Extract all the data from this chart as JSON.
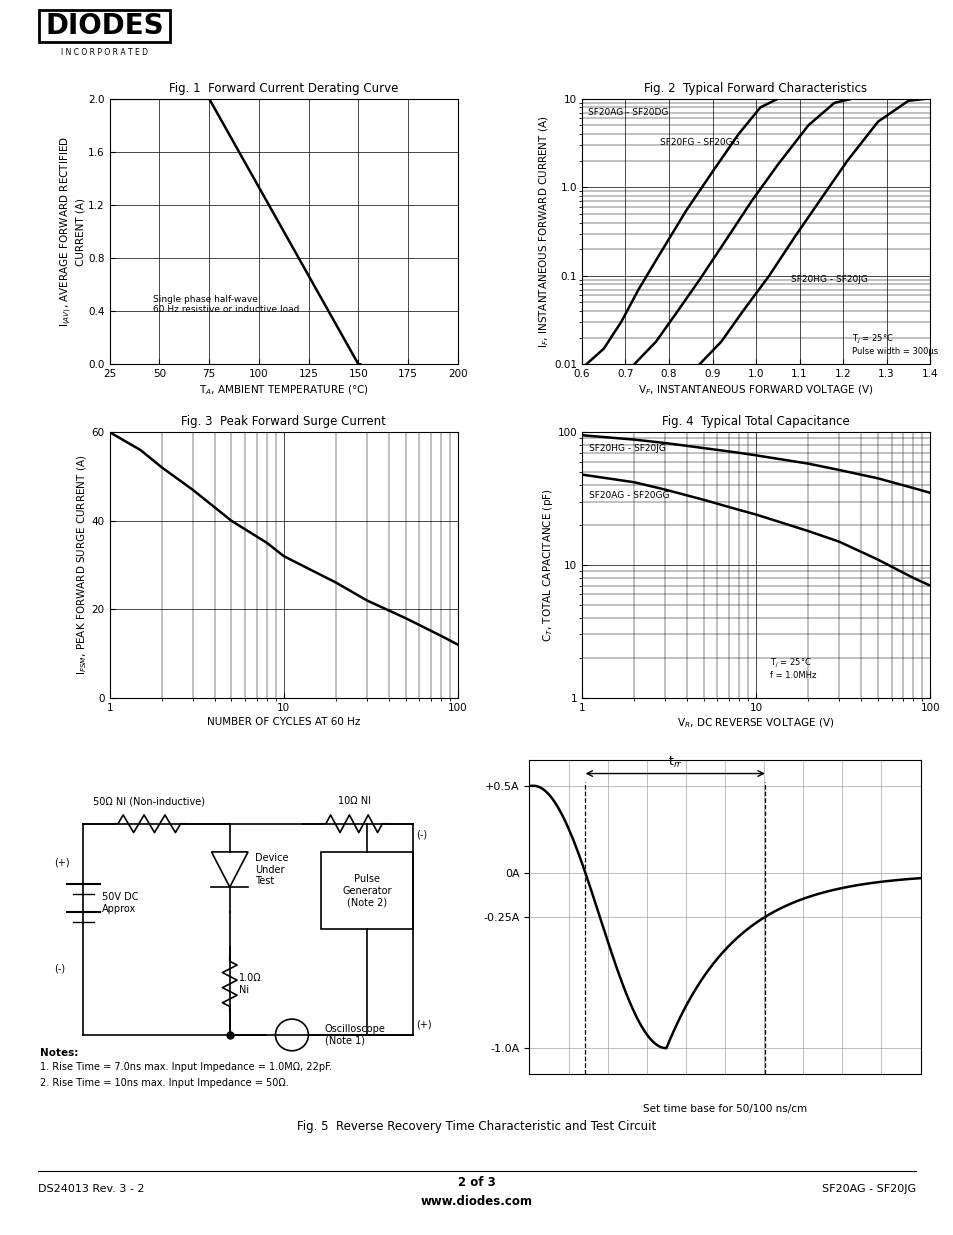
{
  "footer_left": "DS24013 Rev. 3 - 2",
  "footer_center": "2 of 3",
  "footer_center2": "www.diodes.com",
  "footer_right": "SF20AG - SF20JG",
  "fig1_title": "Fig. 1  Forward Current Derating Curve",
  "fig2_title": "Fig. 2  Typical Forward Characteristics",
  "fig3_title": "Fig. 3  Peak Forward Surge Current",
  "fig4_title": "Fig. 4  Typical Total Capacitance",
  "fig5_title": "Fig. 5  Reverse Recovery Time Characteristic and Test Circuit",
  "fig1_curve_x": [
    25,
    75,
    150,
    151
  ],
  "fig1_curve_y": [
    2.0,
    2.0,
    0.0,
    0.0
  ],
  "fig2_curve1_x": [
    0.61,
    0.65,
    0.69,
    0.73,
    0.78,
    0.84,
    0.9,
    0.96,
    1.01,
    1.05
  ],
  "fig2_curve1_y": [
    0.01,
    0.015,
    0.03,
    0.07,
    0.18,
    0.55,
    1.5,
    4.0,
    8.0,
    10.0
  ],
  "fig2_curve2_x": [
    0.72,
    0.77,
    0.82,
    0.87,
    0.93,
    0.99,
    1.05,
    1.12,
    1.18,
    1.22
  ],
  "fig2_curve2_y": [
    0.01,
    0.018,
    0.04,
    0.09,
    0.25,
    0.7,
    1.8,
    5.0,
    9.0,
    10.0
  ],
  "fig2_curve3_x": [
    0.87,
    0.92,
    0.97,
    1.03,
    1.09,
    1.15,
    1.21,
    1.28,
    1.35,
    1.39
  ],
  "fig2_curve3_y": [
    0.01,
    0.018,
    0.04,
    0.1,
    0.28,
    0.75,
    2.0,
    5.5,
    9.5,
    10.0
  ],
  "fig3_curve_x": [
    1,
    1.5,
    2,
    3,
    5,
    8,
    10,
    20,
    30,
    50,
    80,
    100
  ],
  "fig3_curve_y": [
    60,
    56,
    52,
    47,
    40,
    35,
    32,
    26,
    22,
    18,
    14,
    12
  ],
  "fig4_curve1_x": [
    1,
    2,
    3,
    5,
    8,
    10,
    20,
    30,
    50,
    80,
    100
  ],
  "fig4_curve1_y": [
    95,
    88,
    83,
    76,
    70,
    67,
    58,
    52,
    45,
    38,
    35
  ],
  "fig4_curve2_x": [
    1,
    2,
    3,
    5,
    8,
    10,
    20,
    30,
    50,
    80,
    100
  ],
  "fig4_curve2_y": [
    48,
    42,
    37,
    31,
    26,
    24,
    18,
    15,
    11,
    8,
    7
  ]
}
